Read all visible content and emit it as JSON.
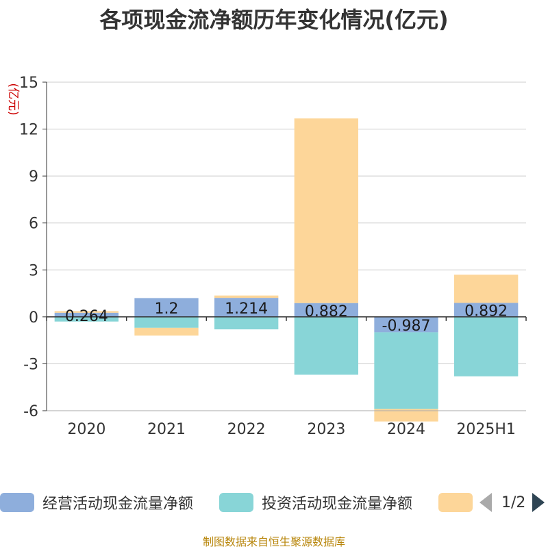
{
  "chart_data": {
    "type": "bar",
    "stacked": true,
    "title": "各项现金流净额历年变化情况(亿元)",
    "ylabel": "(亿元)",
    "categories": [
      "2020",
      "2021",
      "2022",
      "2023",
      "2024",
      "2025H1"
    ],
    "ylim": [
      -6,
      15
    ],
    "yticks": [
      -6,
      -3,
      0,
      3,
      6,
      9,
      12,
      15
    ],
    "grid": true,
    "series": [
      {
        "name": "经营活动现金流量净额",
        "color": "#8eaedc",
        "values": [
          0.264,
          1.2,
          1.214,
          0.882,
          -0.987,
          0.892
        ],
        "labels": [
          "0.264",
          "1.2",
          "1.214",
          "0.882",
          "-0.987",
          "0.892"
        ]
      },
      {
        "name": "投资活动现金流量净额",
        "color": "#88d5d7",
        "values": [
          -0.3,
          -0.7,
          -0.8,
          -3.7,
          -4.9,
          -3.8
        ]
      },
      {
        "name": "",
        "color": "#fdd699",
        "values": [
          0.1,
          -0.5,
          0.15,
          11.8,
          -0.8,
          1.8
        ]
      }
    ]
  },
  "legend_page": "1/2",
  "source": "制图数据来自恒生聚源数据库"
}
